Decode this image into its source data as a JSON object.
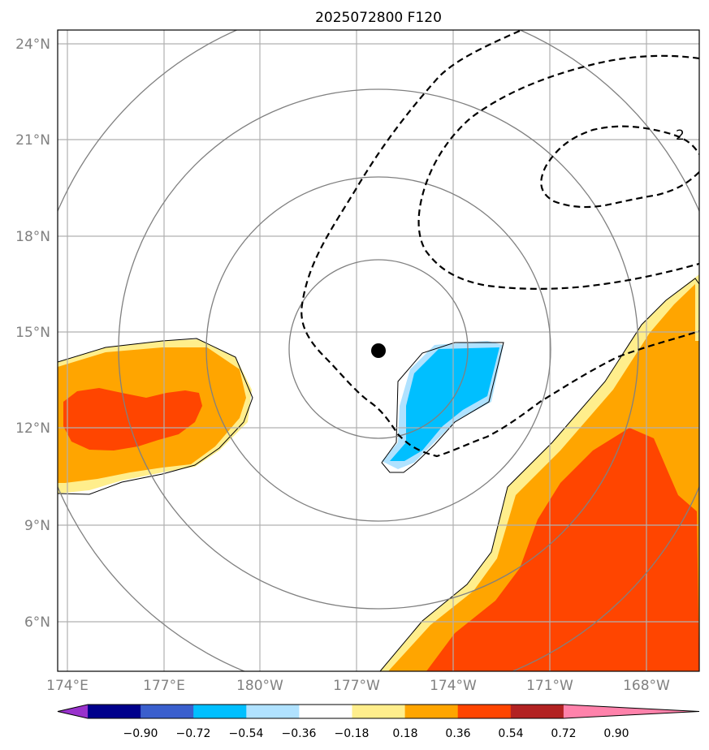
{
  "title": "2025072800 F120",
  "lat_labels": [
    "24°N",
    "21°N",
    "18°N",
    "15°N",
    "12°N",
    "9°N",
    "6°N"
  ],
  "lon_labels": [
    "174°E",
    "177°E",
    "180°W",
    "177°W",
    "174°W",
    "171°W",
    "168°W"
  ],
  "contour_label": "2",
  "colorbar": {
    "labels": [
      "−0.90",
      "−0.72",
      "−0.54",
      "−0.36",
      "−0.18",
      "0.18",
      "0.36",
      "0.54",
      "0.72",
      "0.90"
    ],
    "colors": [
      "#9932cc",
      "#00008b",
      "#3a5fcd",
      "#00bfff",
      "#b0e2ff",
      "#ffffff",
      "#ffee8c",
      "#ffa500",
      "#ff4500",
      "#b22222",
      "#ff82ab"
    ]
  },
  "colors": {
    "grid": "#b0b0b0",
    "range_rings": "#808080",
    "contour": "#000000",
    "center_marker": "#000000"
  }
}
